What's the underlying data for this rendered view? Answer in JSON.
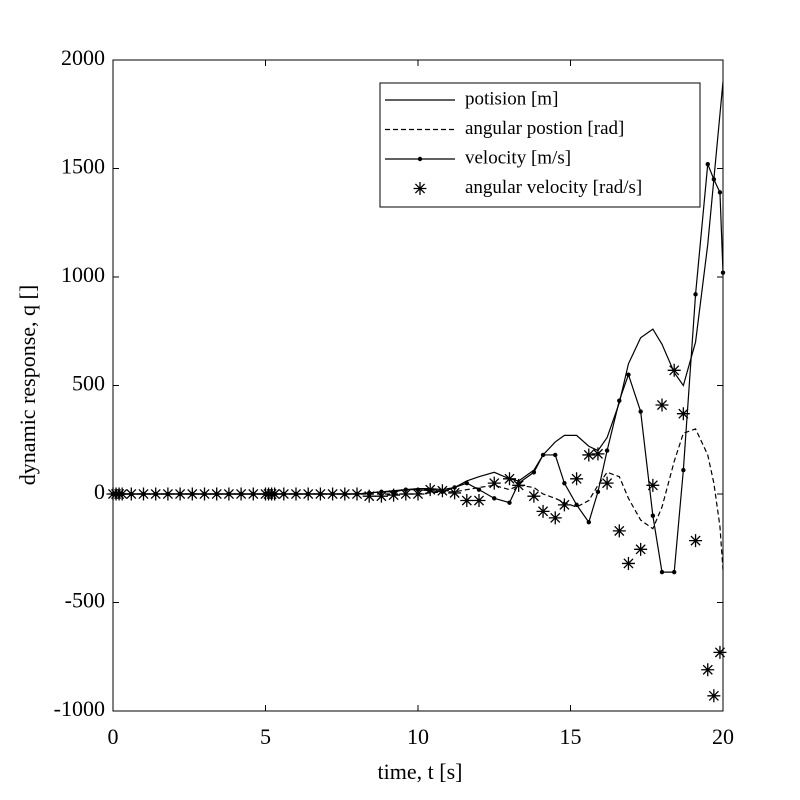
{
  "chart_data": {
    "type": "line",
    "x_label": "time,  t [s]",
    "y_label": "dynamic response,  q []",
    "x": [
      0,
      0.1,
      0.2,
      0.3,
      0.6,
      1,
      1.4,
      1.8,
      2.2,
      2.6,
      3,
      3.4,
      3.8,
      4.2,
      4.6,
      5,
      5.1,
      5.2,
      5.3,
      5.6,
      6,
      6.4,
      6.8,
      7.2,
      7.6,
      8,
      8.4,
      8.8,
      9.2,
      9.6,
      10,
      10.4,
      10.8,
      11.2,
      11.6,
      12,
      12.5,
      13,
      13.3,
      13.8,
      14.1,
      14.5,
      14.8,
      15.2,
      15.6,
      15.9,
      16.2,
      16.6,
      16.9,
      17.3,
      17.7,
      18,
      18.4,
      18.7,
      19.1,
      19.5,
      19.7,
      19.9,
      20
    ],
    "series": [
      {
        "name": "potision [m]",
        "color": "#000000",
        "style": "solid",
        "values": [
          0,
          0,
          0,
          0,
          0,
          0,
          0,
          0,
          0,
          0,
          0,
          0,
          0,
          0,
          0,
          0,
          0,
          0,
          0,
          0,
          0,
          0,
          0,
          0,
          0,
          0,
          5,
          10,
          15,
          20,
          25,
          25,
          20,
          30,
          60,
          80,
          100,
          70,
          60,
          110,
          180,
          240,
          270,
          270,
          220,
          200,
          260,
          420,
          600,
          720,
          760,
          690,
          560,
          500,
          700,
          1150,
          1450,
          1750,
          1900
        ]
      },
      {
        "name": "angular postion [rad]",
        "color": "#000000",
        "style": "dashed",
        "values": [
          0,
          0,
          0,
          0,
          0,
          0,
          0,
          0,
          0,
          0,
          0,
          0,
          0,
          0,
          0,
          0,
          0,
          0,
          0,
          0,
          0,
          0,
          0,
          0,
          0,
          0,
          0,
          0,
          0,
          0,
          0,
          5,
          10,
          10,
          20,
          30,
          40,
          20,
          40,
          30,
          0,
          -20,
          -40,
          -60,
          -30,
          40,
          100,
          80,
          -20,
          -120,
          -160,
          -60,
          150,
          280,
          300,
          180,
          50,
          -150,
          -350
        ]
      },
      {
        "name": "velocity [m/s]",
        "color": "#000000",
        "style": "dot-line",
        "values": [
          0,
          0,
          0,
          0,
          0,
          0,
          0,
          0,
          0,
          0,
          0,
          0,
          0,
          0,
          0,
          0,
          0,
          0,
          0,
          0,
          0,
          0,
          0,
          0,
          0,
          0,
          5,
          10,
          10,
          20,
          20,
          15,
          10,
          30,
          50,
          20,
          -20,
          -40,
          50,
          100,
          180,
          180,
          50,
          -50,
          -130,
          10,
          200,
          430,
          550,
          380,
          -100,
          -360,
          -360,
          110,
          920,
          1520,
          1450,
          1390,
          1020
        ]
      },
      {
        "name": "angular velocity [rad/s]",
        "color": "#000000",
        "style": "asterisk",
        "values": [
          0,
          0,
          0,
          0,
          0,
          0,
          0,
          0,
          0,
          0,
          0,
          0,
          0,
          0,
          0,
          0,
          0,
          0,
          0,
          0,
          0,
          0,
          0,
          0,
          0,
          0,
          -10,
          -10,
          -5,
          0,
          0,
          20,
          15,
          5,
          -30,
          -30,
          50,
          70,
          40,
          -10,
          -80,
          -110,
          -50,
          70,
          180,
          185,
          50,
          -170,
          -320,
          -255,
          40,
          410,
          570,
          370,
          -215,
          -810,
          -930,
          -730,
          null
        ]
      }
    ],
    "xlim": [
      0,
      20
    ],
    "xticks": [
      0,
      5,
      10,
      15,
      20
    ],
    "ylim": [
      -1000,
      2000
    ],
    "yticks": [
      -1000,
      -500,
      0,
      500,
      1000,
      1500,
      2000
    ],
    "legend": "upper right"
  }
}
